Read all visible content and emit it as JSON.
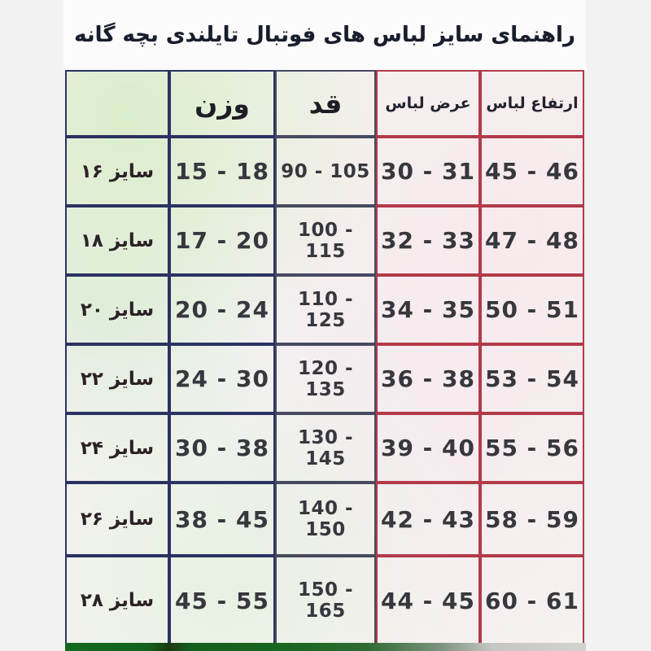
{
  "title": "راهنمای سایز لباس های فوتبال تایلندی بچه گانه",
  "table": {
    "columns": [
      {
        "key": "size",
        "label": ""
      },
      {
        "key": "weight",
        "label": "وزن"
      },
      {
        "key": "height",
        "label": "قد"
      },
      {
        "key": "garment_width",
        "label": "عرض لباس"
      },
      {
        "key": "garment_height",
        "label": "ارتفاع لباس"
      }
    ],
    "rows": [
      {
        "size": "سایز ۱۶",
        "weight": "15 - 18",
        "height": "90 - 105",
        "garment_width": "30 - 31",
        "garment_height": "45 - 46"
      },
      {
        "size": "سایز ۱۸",
        "weight": "17 - 20",
        "height": "100 - 115",
        "garment_width": "32 - 33",
        "garment_height": "47 - 48"
      },
      {
        "size": "سایز ۲۰",
        "weight": "20 - 24",
        "height": "110 - 125",
        "garment_width": "34 - 35",
        "garment_height": "50 - 51"
      },
      {
        "size": "سایز ۲۲",
        "weight": "24 - 30",
        "height": "120 - 135",
        "garment_width": "36 - 38",
        "garment_height": "53 - 54"
      },
      {
        "size": "سایز ۲۴",
        "weight": "30 - 38",
        "height": "130 - 145",
        "garment_width": "39 - 40",
        "garment_height": "55 - 56"
      },
      {
        "size": "سایز ۲۶",
        "weight": "38 - 45",
        "height": "140 - 150",
        "garment_width": "42 - 43",
        "garment_height": "58 - 59"
      },
      {
        "size": "سایز ۲۸",
        "weight": "45 - 55",
        "height": "150 - 165",
        "garment_width": "44 - 45",
        "garment_height": "60 - 61"
      }
    ]
  },
  "colors": {
    "page_background": "#f2f2f2",
    "title_text": "#181d2c",
    "border_navy": "#2b3262",
    "border_slate": "#474a5e",
    "border_red": "#b23a4a",
    "bottom_strip_green": "#15691f"
  }
}
